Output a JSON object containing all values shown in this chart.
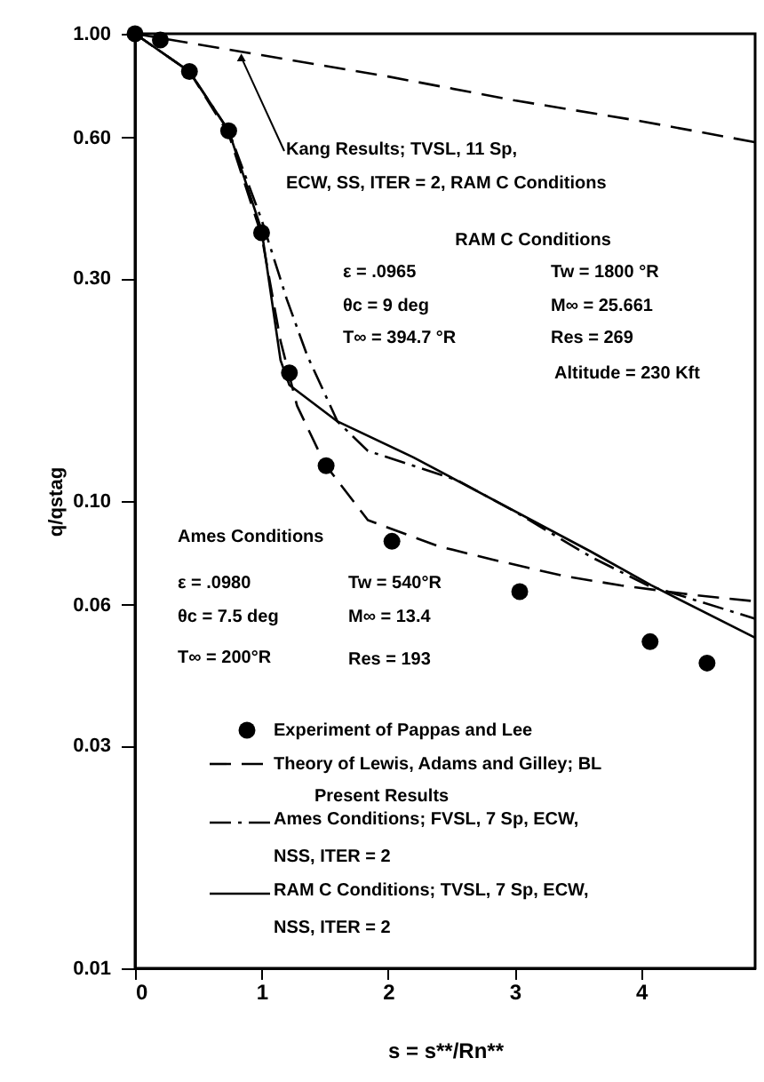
{
  "chart_data": {
    "type": "line",
    "xlabel": "s = s**/Rn**",
    "ylabel": "q/qstag",
    "xlim": [
      0,
      4.9
    ],
    "xticks": [
      0,
      1,
      2,
      3,
      4
    ],
    "ylim": [
      0.01,
      1
    ],
    "log": "y",
    "yticks": [
      {
        "value": 1,
        "label": "1.00"
      },
      {
        "value": 0.6,
        "label": "0.60"
      },
      {
        "value": 0.3,
        "label": "0.30"
      },
      {
        "value": 0.1,
        "label": "0.10"
      },
      {
        "value": 0.06,
        "label": "0.06"
      },
      {
        "value": 0.03,
        "label": "0.03"
      },
      {
        "value": 0.01,
        "label": "0.01"
      }
    ],
    "grid": false,
    "legend": "bottom",
    "series": [
      {
        "name": "Experiment of Pappas and Lee",
        "type": "scatter",
        "marker": "circle",
        "color": "#000000",
        "x": [
          0,
          0.2,
          0.43,
          0.74,
          1.0,
          1.22,
          1.51,
          2.03,
          3.04,
          4.07,
          4.52
        ],
        "values": [
          1,
          0.97,
          0.83,
          0.62,
          0.375,
          0.188,
          0.119,
          0.082,
          0.064,
          0.05,
          0.045
        ]
      },
      {
        "name": "Theory of Lewis, Adams and Gilley; BL",
        "line_style": "dashed",
        "color": "#000000",
        "x": [
          0,
          0.43,
          0.74,
          1.0,
          1.15,
          1.28,
          1.5,
          1.84,
          2.4,
          2.82,
          3.4,
          3.84,
          4.4,
          4.9
        ],
        "values": [
          1,
          0.83,
          0.61,
          0.37,
          0.22,
          0.16,
          0.12,
          0.091,
          0.08,
          0.075,
          0.069,
          0.066,
          0.063,
          0.061
        ]
      },
      {
        "name": "Ames Conditions; FVSL, 7 Sp, ECW, NSS, ITER = 2",
        "line_style": "dashdot",
        "color": "#000000",
        "x": [
          0,
          0.43,
          0.74,
          1.0,
          1.2,
          1.36,
          1.6,
          1.84,
          2.54,
          3.0,
          3.6,
          4.05,
          4.9
        ],
        "values": [
          1,
          0.83,
          0.62,
          0.4,
          0.27,
          0.205,
          0.148,
          0.128,
          0.111,
          0.095,
          0.076,
          0.066,
          0.056
        ]
      },
      {
        "name": "RAM C Conditions; TVSL, 7 Sp, ECW, NSS, ITER = 2",
        "line_style": "solid",
        "color": "#000000",
        "x": [
          0,
          0.43,
          0.74,
          1.0,
          1.15,
          1.22,
          1.6,
          2.2,
          3.6,
          4.08,
          4.9
        ],
        "values": [
          1,
          0.83,
          0.62,
          0.38,
          0.2,
          0.177,
          0.148,
          0.124,
          0.078,
          0.066,
          0.051
        ]
      },
      {
        "line_style": "dashed",
        "color": "#000000",
        "x": [
          0,
          1,
          2,
          3,
          4,
          4.9
        ],
        "values": [
          1,
          0.9,
          0.81,
          0.72,
          0.65,
          0.586
        ]
      }
    ],
    "annotations": [
      {
        "text": "Kang Results; TVSL, 11 Sp, ECW, SS, ITER = 2, RAM C Conditions",
        "x": 0.84,
        "y": 0.89
      },
      "RAM C Conditions",
      "ε = .0965",
      "θc = 9 deg",
      "T∞ = 394.7 °R",
      "Tw = 1800 °R",
      "M∞ = 25.661",
      "Res = 269",
      "Altitude = 230 Kft",
      "Ames Conditions",
      "ε = .0980",
      "θc = 7.5 deg",
      "T∞ = 200°R",
      "Tw = 540°R",
      "M∞ = 13.4",
      "Res = 193",
      "Present Results"
    ]
  }
}
